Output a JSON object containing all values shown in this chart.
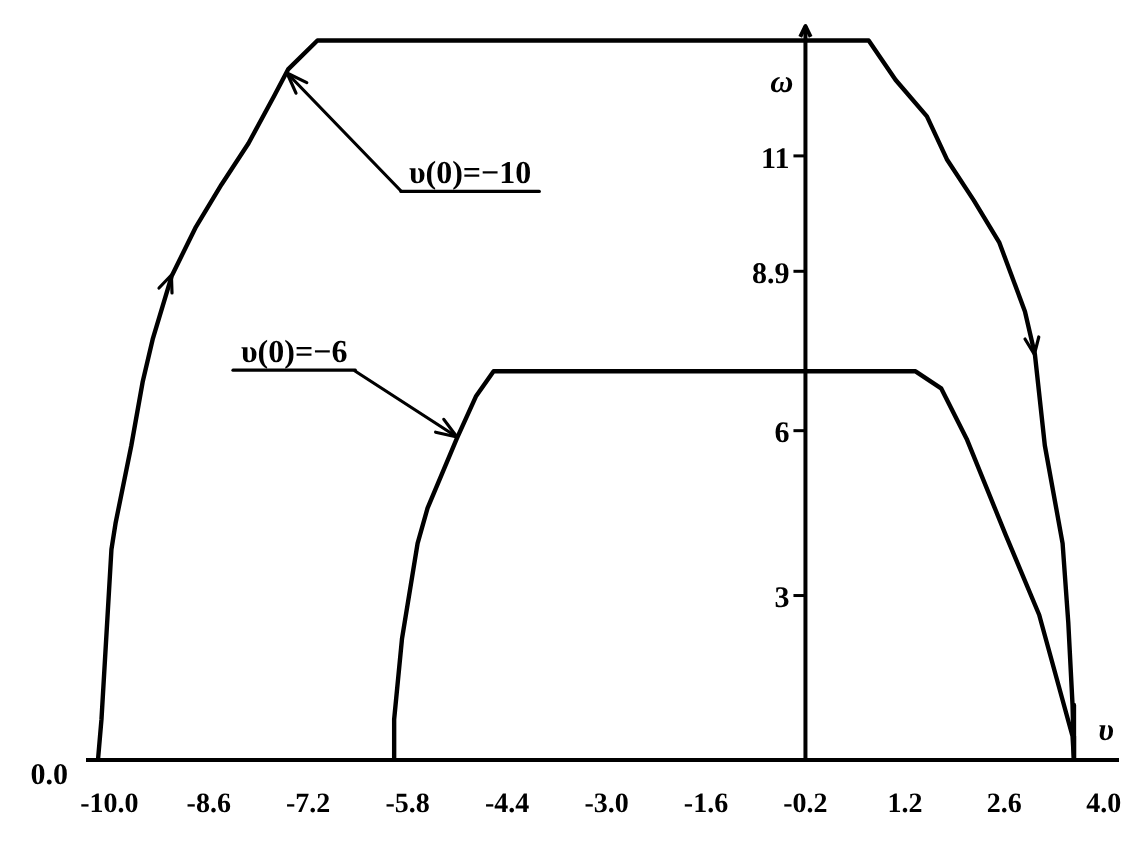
{
  "chart_data": {
    "type": "line",
    "xlabel": "υ",
    "ylabel": "ω",
    "xlim": [
      -10.3,
      4.2
    ],
    "ylim": [
      0,
      13.4
    ],
    "xticks": [
      {
        "value": -10,
        "label": "-10.0"
      },
      -8.6,
      -7.2,
      -5.8,
      -4.4,
      {
        "value": -3,
        "label": "-3.0"
      },
      -1.6,
      -0.2,
      1.2,
      2.6,
      {
        "value": 4,
        "label": "4.0"
      }
    ],
    "yticks": [
      3,
      6,
      8.9,
      11
    ],
    "series": [
      {
        "color": "#000000",
        "x": [
          -10.16,
          -10.11,
          -9.97,
          -9.91,
          -9.69,
          -9.53,
          -9.39,
          -9.12,
          -8.78,
          -8.42,
          -8.04,
          -7.68,
          -7.48,
          -7.07,
          0.69,
          1.07,
          1.51,
          1.79,
          2.17,
          2.53,
          2.89,
          3.03,
          3.17,
          3.42,
          3.5,
          3.56,
          3.58
        ],
        "values": [
          0,
          0.75,
          3.84,
          4.33,
          5.73,
          6.89,
          7.66,
          8.82,
          9.71,
          10.48,
          11.23,
          12.09,
          12.58,
          13.1,
          13.1,
          12.38,
          11.72,
          10.94,
          10.19,
          9.42,
          8.17,
          7.39,
          5.73,
          3.95,
          2.51,
          1.01,
          0
        ]
      },
      {
        "color": "#000000",
        "x": [
          -5.97,
          -5.99,
          -5.88,
          -5.66,
          -5.52,
          -5.11,
          -4.84,
          -4.59,
          1.35,
          1.71,
          2.07,
          2.62,
          3.09,
          3.56,
          3.58
        ],
        "values": [
          0,
          0.75,
          2.21,
          3.95,
          4.59,
          5.85,
          6.62,
          7.08,
          7.08,
          6.77,
          5.85,
          4.1,
          2.65,
          0.44,
          0
        ]
      }
    ],
    "annotations": [
      {
        "text": "υ(0)=−10",
        "x": -7.5,
        "y": 12.5
      },
      {
        "text": "υ(0)=−6",
        "x": -5.1,
        "y": 5.9
      },
      "0.0"
    ]
  }
}
